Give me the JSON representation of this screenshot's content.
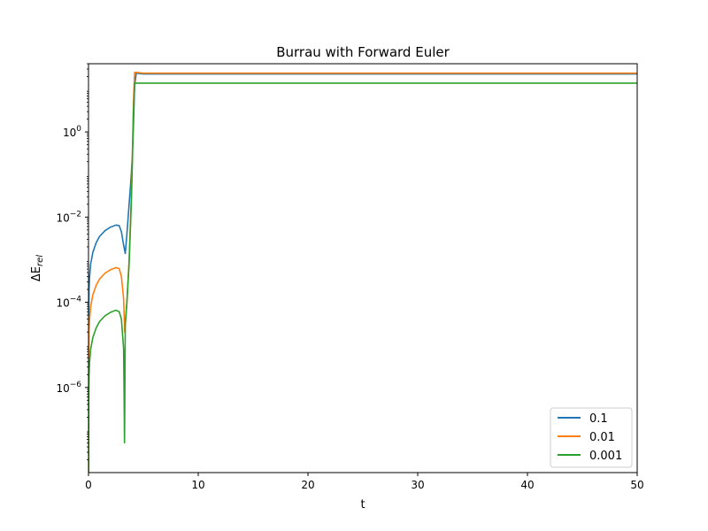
{
  "chart_data": {
    "type": "line",
    "title": "Burrau with Forward Euler",
    "xlabel": "t",
    "ylabel": "ΔE_rel",
    "xlim": [
      0,
      50
    ],
    "ylim": [
      1e-08,
      40
    ],
    "yscale": "log",
    "grid": false,
    "legend_position": "lower-right",
    "x_ticks": [
      {
        "value": 0,
        "label": "0"
      },
      {
        "value": 10,
        "label": "10"
      },
      {
        "value": 20,
        "label": "20"
      },
      {
        "value": 30,
        "label": "30"
      },
      {
        "value": 40,
        "label": "40"
      },
      {
        "value": 50,
        "label": "50"
      }
    ],
    "y_ticks": [
      {
        "value": 1,
        "base": "10",
        "exp": "0"
      },
      {
        "value": 0.01,
        "base": "10",
        "exp": "−2"
      },
      {
        "value": 0.0001,
        "base": "10",
        "exp": "−4"
      },
      {
        "value": 1e-06,
        "base": "10",
        "exp": "−6"
      }
    ],
    "series": [
      {
        "name": "0.1",
        "color": "#1f77b4",
        "points": [
          [
            0.0,
            1e-08
          ],
          [
            0.02,
            5e-05
          ],
          [
            0.05,
            0.0002
          ],
          [
            0.1,
            0.0004
          ],
          [
            0.2,
            0.0008
          ],
          [
            0.4,
            0.0015
          ],
          [
            0.7,
            0.0025
          ],
          [
            1.0,
            0.0035
          ],
          [
            1.5,
            0.0048
          ],
          [
            2.0,
            0.0058
          ],
          [
            2.5,
            0.0065
          ],
          [
            2.8,
            0.0063
          ],
          [
            3.0,
            0.0045
          ],
          [
            3.2,
            0.0022
          ],
          [
            3.35,
            0.0014
          ],
          [
            3.5,
            0.004
          ],
          [
            3.7,
            0.02
          ],
          [
            3.9,
            0.1
          ],
          [
            4.0,
            0.3
          ],
          [
            4.1,
            1.5
          ],
          [
            4.2,
            12
          ],
          [
            4.35,
            24
          ],
          [
            5.0,
            23
          ],
          [
            10,
            23
          ],
          [
            20,
            23
          ],
          [
            30,
            23
          ],
          [
            40,
            23
          ],
          [
            50,
            23
          ]
        ]
      },
      {
        "name": "0.01",
        "color": "#ff7f0e",
        "points": [
          [
            0.0,
            1e-08
          ],
          [
            0.02,
            5e-06
          ],
          [
            0.05,
            2e-05
          ],
          [
            0.1,
            4e-05
          ],
          [
            0.2,
            8e-05
          ],
          [
            0.4,
            0.00015
          ],
          [
            0.7,
            0.00025
          ],
          [
            1.0,
            0.00035
          ],
          [
            1.5,
            0.00048
          ],
          [
            2.0,
            0.00058
          ],
          [
            2.5,
            0.00065
          ],
          [
            2.8,
            0.00062
          ],
          [
            3.0,
            0.0004
          ],
          [
            3.2,
            0.00012
          ],
          [
            3.3,
            2e-05
          ],
          [
            3.35,
            3e-05
          ],
          [
            3.5,
            0.0001
          ],
          [
            3.7,
            0.001
          ],
          [
            3.9,
            0.03
          ],
          [
            4.0,
            0.3
          ],
          [
            4.1,
            5
          ],
          [
            4.2,
            25
          ],
          [
            4.35,
            25
          ],
          [
            5.0,
            24
          ],
          [
            10,
            24
          ],
          [
            20,
            24
          ],
          [
            30,
            24
          ],
          [
            40,
            24
          ],
          [
            50,
            24
          ]
        ]
      },
      {
        "name": "0.001",
        "color": "#2ca02c",
        "points": [
          [
            0.0,
            1e-08
          ],
          [
            0.02,
            5e-07
          ],
          [
            0.05,
            2e-06
          ],
          [
            0.1,
            4e-06
          ],
          [
            0.2,
            8e-06
          ],
          [
            0.4,
            1.5e-05
          ],
          [
            0.7,
            2.5e-05
          ],
          [
            1.0,
            3.5e-05
          ],
          [
            1.5,
            4.8e-05
          ],
          [
            2.0,
            5.8e-05
          ],
          [
            2.5,
            6.5e-05
          ],
          [
            2.8,
            6e-05
          ],
          [
            3.0,
            4e-05
          ],
          [
            3.2,
            8e-06
          ],
          [
            3.25,
            5e-07
          ],
          [
            3.28,
            5e-08
          ],
          [
            3.31,
            5e-07
          ],
          [
            3.35,
            3e-05
          ],
          [
            3.5,
            0.0001
          ],
          [
            3.7,
            0.0008
          ],
          [
            3.9,
            0.02
          ],
          [
            4.0,
            0.2
          ],
          [
            4.1,
            3
          ],
          [
            4.2,
            14
          ],
          [
            5.0,
            14
          ],
          [
            10,
            14
          ],
          [
            20,
            14
          ],
          [
            30,
            14
          ],
          [
            40,
            14
          ],
          [
            50,
            14
          ]
        ]
      }
    ]
  }
}
